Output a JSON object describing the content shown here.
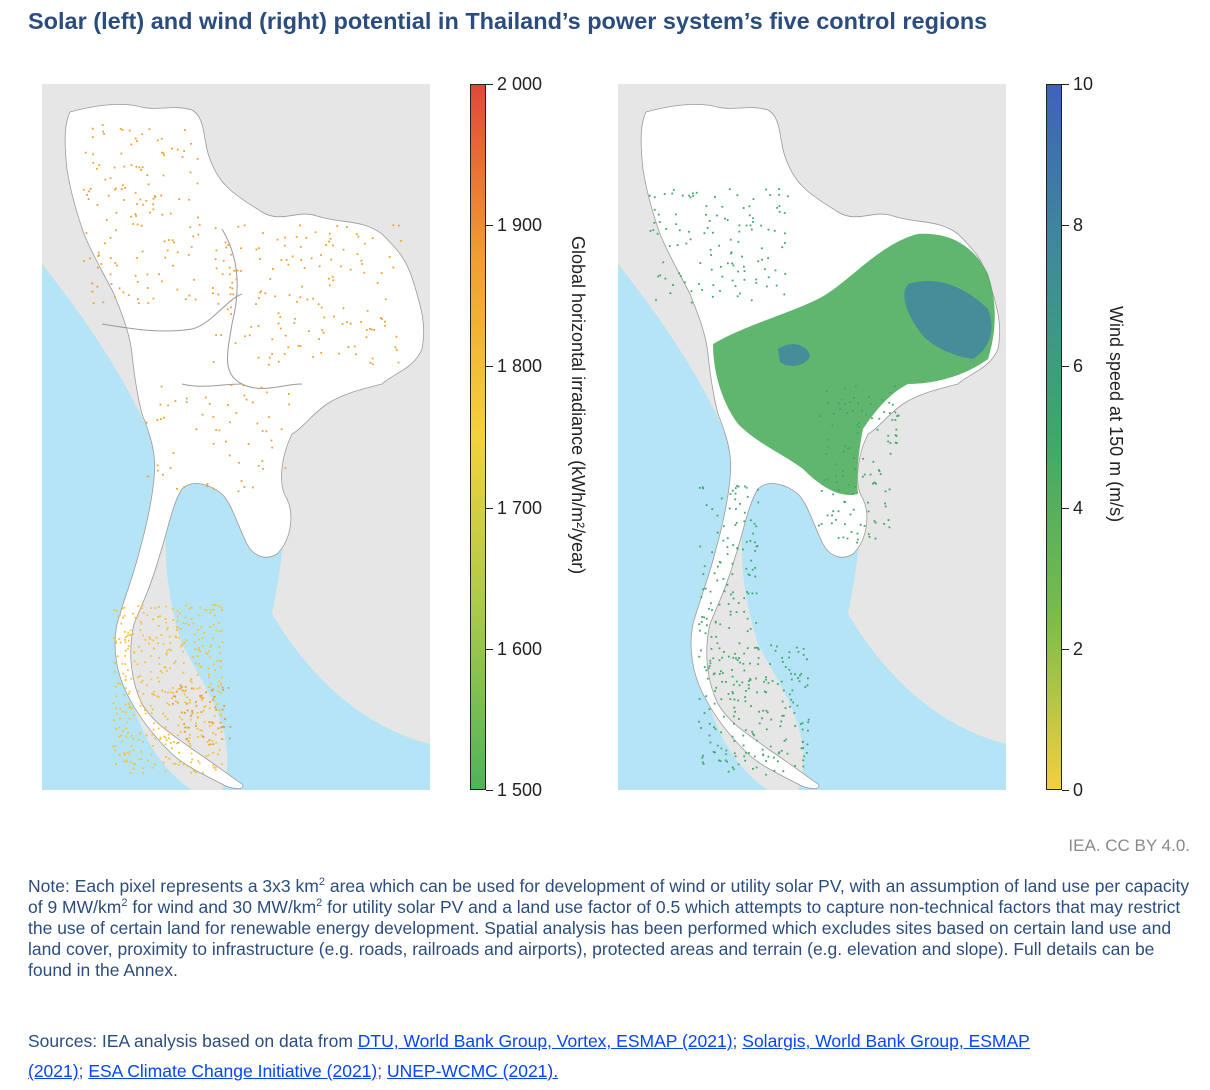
{
  "title": "Solar (left) and wind (right) potential in Thailand’s power system’s five control regions",
  "solar": {
    "colorbar_label": "Global horizontal irradiance (kWh/m²/year)",
    "ticks": [
      "2 000",
      "1 900",
      "1 800",
      "1 700",
      "1 600",
      "1 500"
    ],
    "range": [
      1500,
      2000
    ],
    "colors": [
      "#e0483a",
      "#f0a030",
      "#f3d33b",
      "#a9c94a",
      "#4fb35a"
    ]
  },
  "wind": {
    "colorbar_label": "Wind speed at 150 m (m/s)",
    "ticks": [
      "10",
      "8",
      "6",
      "4",
      "2",
      "0"
    ],
    "range": [
      0,
      10
    ],
    "colors": [
      "#3f63b8",
      "#3f8c98",
      "#3fa76a",
      "#79bb4c",
      "#f4cf3f"
    ]
  },
  "map_colors": {
    "land": "#ffffff",
    "neighbours": "#e6e6e6",
    "sea": "#b6e4f7",
    "borders": "#9a9a9a"
  },
  "credit": "IEA. CC BY 4.0.",
  "note": {
    "p1": "Note: Each pixel represents a 3x3 km",
    "sup1": "2",
    "p2": " area which can be used for development of wind or utility solar PV, with an assumption of land use per capacity of 9 MW/km",
    "sup2": "2",
    "p3": " for wind and 30 MW/km",
    "sup3": "2",
    "p4": " for utility solar PV and a land use factor of 0.5 which attempts to capture non-technical factors that may restrict the use of certain land for renewable energy development. Spatial analysis has been performed which excludes sites based on certain land use and land cover, proximity to infrastructure (e.g. roads, railroads and airports), protected areas and terrain (e.g. elevation and slope). Full details can be found in the Annex."
  },
  "sources": {
    "prefix": "Sources: IEA analysis based on data from ",
    "link1": "DTU, World Bank Group, Vortex, ESMAP (2021)",
    "sep1": "; ",
    "link2": "Solargis, World Bank Group, ESMAP (2021)",
    "sep2": "; ",
    "link3": "ESA Climate Change Initiative (2021)",
    "sep3": "; ",
    "link4": "UNEP-WCMC (2021)."
  }
}
